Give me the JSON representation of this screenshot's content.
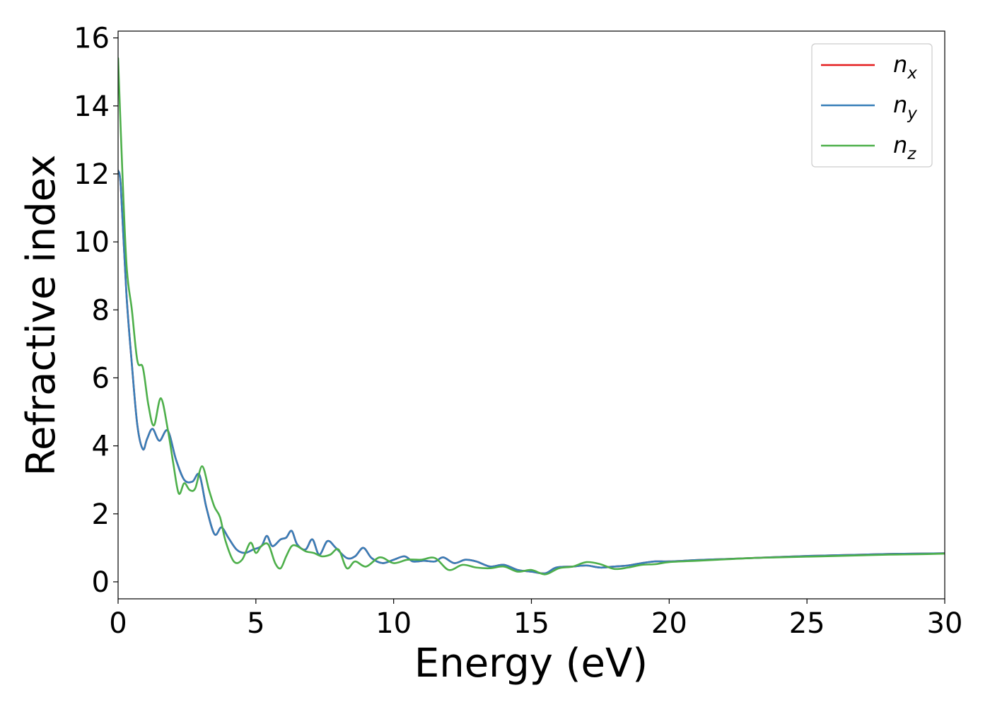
{
  "chart_data": {
    "type": "line",
    "xlabel": "Energy (eV)",
    "ylabel": "Refractive index",
    "xlim": [
      0,
      30
    ],
    "ylim": [
      -0.5,
      16.2
    ],
    "xticks": [
      0,
      5,
      10,
      15,
      20,
      25,
      30
    ],
    "yticks": [
      0,
      2,
      4,
      6,
      8,
      10,
      12,
      14,
      16
    ],
    "grid": false,
    "legend_position": "top-right",
    "series": [
      {
        "name": "n",
        "subscript": "x",
        "color": "#e41a1c",
        "x": [
          0,
          0.1,
          0.3,
          0.5,
          0.7,
          0.9,
          1.05,
          1.25,
          1.5,
          1.8,
          2.1,
          2.4,
          2.7,
          2.95,
          3.2,
          3.5,
          3.75,
          4.0,
          4.3,
          4.6,
          4.9,
          5.2,
          5.4,
          5.6,
          5.9,
          6.1,
          6.3,
          6.5,
          6.8,
          7.05,
          7.3,
          7.6,
          7.9,
          8.3,
          8.6,
          8.9,
          9.2,
          9.6,
          10.0,
          10.4,
          10.7,
          11.1,
          11.5,
          11.8,
          12.2,
          12.6,
          13.0,
          13.5,
          14.0,
          14.5,
          15.0,
          15.5,
          15.9,
          16.5,
          17.0,
          17.5,
          18.0,
          18.5,
          19.0,
          19.5,
          20.0,
          21.0,
          22.0,
          23.0,
          24.0,
          25.0,
          26.0,
          27.0,
          28.0,
          29.0,
          30.0
        ],
        "y": [
          12.1,
          11.6,
          8.5,
          6.4,
          4.6,
          3.9,
          4.2,
          4.5,
          4.15,
          4.45,
          3.6,
          3.0,
          2.95,
          3.15,
          2.2,
          1.4,
          1.6,
          1.3,
          0.95,
          0.85,
          0.95,
          1.05,
          1.35,
          1.05,
          1.25,
          1.3,
          1.5,
          1.1,
          0.95,
          1.25,
          0.8,
          1.2,
          1.0,
          0.7,
          0.75,
          1.0,
          0.7,
          0.55,
          0.65,
          0.75,
          0.6,
          0.62,
          0.6,
          0.72,
          0.55,
          0.65,
          0.6,
          0.45,
          0.5,
          0.35,
          0.3,
          0.25,
          0.42,
          0.45,
          0.48,
          0.42,
          0.45,
          0.48,
          0.55,
          0.6,
          0.6,
          0.64,
          0.67,
          0.7,
          0.73,
          0.76,
          0.78,
          0.8,
          0.82,
          0.83,
          0.84
        ]
      },
      {
        "name": "n",
        "subscript": "y",
        "color": "#377eb8",
        "x": [
          0,
          0.1,
          0.3,
          0.5,
          0.7,
          0.9,
          1.05,
          1.25,
          1.5,
          1.8,
          2.1,
          2.4,
          2.7,
          2.95,
          3.2,
          3.5,
          3.75,
          4.0,
          4.3,
          4.6,
          4.9,
          5.2,
          5.4,
          5.6,
          5.9,
          6.1,
          6.3,
          6.5,
          6.8,
          7.05,
          7.3,
          7.6,
          7.9,
          8.3,
          8.6,
          8.9,
          9.2,
          9.6,
          10.0,
          10.4,
          10.7,
          11.1,
          11.5,
          11.8,
          12.2,
          12.6,
          13.0,
          13.5,
          14.0,
          14.5,
          15.0,
          15.5,
          15.9,
          16.5,
          17.0,
          17.5,
          18.0,
          18.5,
          19.0,
          19.5,
          20.0,
          21.0,
          22.0,
          23.0,
          24.0,
          25.0,
          26.0,
          27.0,
          28.0,
          29.0,
          30.0
        ],
        "y": [
          12.1,
          11.6,
          8.5,
          6.4,
          4.6,
          3.9,
          4.2,
          4.5,
          4.15,
          4.45,
          3.6,
          3.0,
          2.95,
          3.15,
          2.2,
          1.4,
          1.6,
          1.3,
          0.95,
          0.85,
          0.95,
          1.05,
          1.35,
          1.05,
          1.25,
          1.3,
          1.5,
          1.1,
          0.95,
          1.25,
          0.8,
          1.2,
          1.0,
          0.7,
          0.75,
          1.0,
          0.7,
          0.55,
          0.65,
          0.75,
          0.6,
          0.62,
          0.6,
          0.72,
          0.55,
          0.65,
          0.6,
          0.45,
          0.5,
          0.35,
          0.3,
          0.25,
          0.42,
          0.45,
          0.48,
          0.42,
          0.45,
          0.48,
          0.55,
          0.6,
          0.6,
          0.64,
          0.67,
          0.7,
          0.73,
          0.76,
          0.78,
          0.8,
          0.82,
          0.83,
          0.84
        ]
      },
      {
        "name": "n",
        "subscript": "z",
        "color": "#4daf4a",
        "x": [
          0,
          0.1,
          0.3,
          0.5,
          0.7,
          0.9,
          1.1,
          1.3,
          1.55,
          1.8,
          2.0,
          2.2,
          2.4,
          2.6,
          2.8,
          3.05,
          3.3,
          3.5,
          3.7,
          3.9,
          4.2,
          4.5,
          4.8,
          5.0,
          5.2,
          5.45,
          5.7,
          5.9,
          6.1,
          6.3,
          6.5,
          6.8,
          7.1,
          7.4,
          7.7,
          8.0,
          8.3,
          8.6,
          9.0,
          9.5,
          10.0,
          10.5,
          11.0,
          11.5,
          12.0,
          12.5,
          13.0,
          13.5,
          14.0,
          14.5,
          15.0,
          15.5,
          16.0,
          16.5,
          17.0,
          17.5,
          18.0,
          18.5,
          19.0,
          19.5,
          20.0,
          21.0,
          22.0,
          23.0,
          24.0,
          25.0,
          26.0,
          27.0,
          28.0,
          29.0,
          30.0
        ],
        "y": [
          15.4,
          13.2,
          9.4,
          8.0,
          6.5,
          6.3,
          5.2,
          4.6,
          5.4,
          4.5,
          3.5,
          2.6,
          2.9,
          2.7,
          2.75,
          3.4,
          2.7,
          2.2,
          1.9,
          1.2,
          0.6,
          0.65,
          1.15,
          0.85,
          1.05,
          1.1,
          0.55,
          0.4,
          0.75,
          1.05,
          1.05,
          0.9,
          0.85,
          0.75,
          0.8,
          0.95,
          0.4,
          0.6,
          0.45,
          0.72,
          0.55,
          0.65,
          0.65,
          0.7,
          0.35,
          0.5,
          0.42,
          0.4,
          0.45,
          0.3,
          0.35,
          0.22,
          0.4,
          0.45,
          0.58,
          0.52,
          0.38,
          0.42,
          0.5,
          0.52,
          0.58,
          0.62,
          0.66,
          0.7,
          0.72,
          0.74,
          0.76,
          0.78,
          0.8,
          0.81,
          0.83
        ]
      }
    ]
  }
}
